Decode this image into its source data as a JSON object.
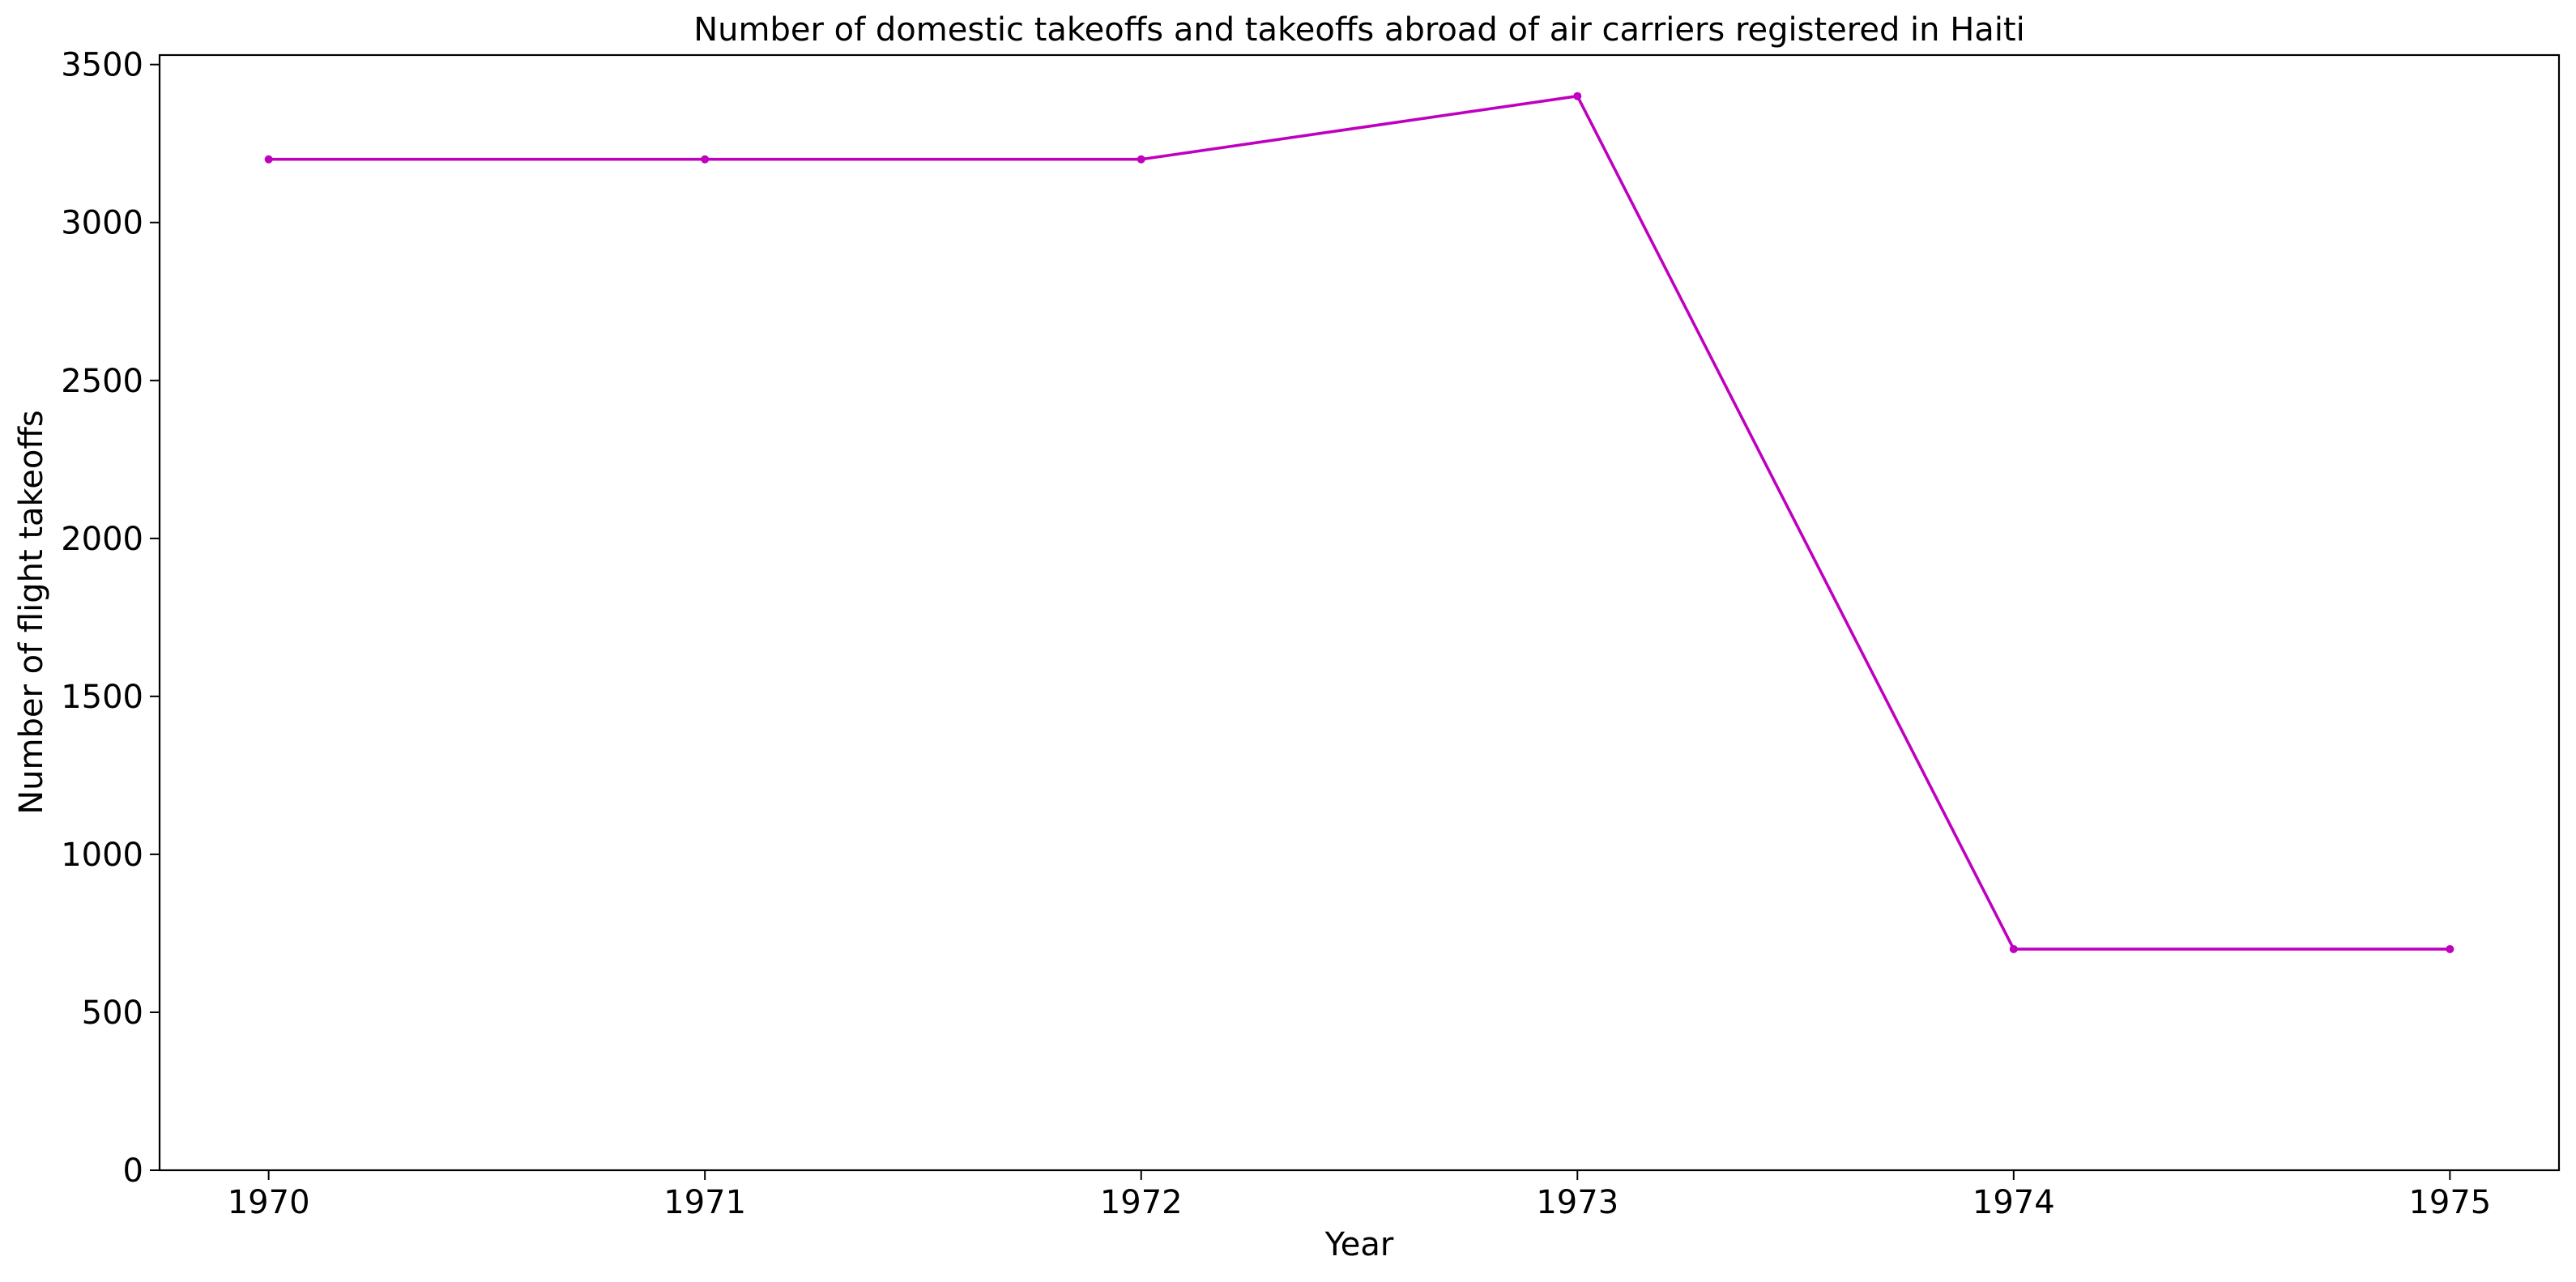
{
  "chart_data": {
    "type": "line",
    "title": "Number of domestic takeoffs and takeoffs abroad of air carriers registered in Haiti",
    "xlabel": "Year",
    "ylabel": "Number of flight takeoffs",
    "x": [
      1970,
      1971,
      1972,
      1973,
      1974,
      1975
    ],
    "x_tick_labels": [
      "1970",
      "1971",
      "1972",
      "1973",
      "1974",
      "1975"
    ],
    "y_ticks": [
      0,
      500,
      1000,
      1500,
      2000,
      2500,
      3000,
      3500
    ],
    "y_tick_labels": [
      "0",
      "500",
      "1000",
      "1500",
      "2000",
      "2500",
      "3000",
      "3500"
    ],
    "xlim": [
      1969.75,
      1975.25
    ],
    "ylim": [
      0,
      3530
    ],
    "grid": false,
    "series": [
      {
        "color": "#bf00bf",
        "marker": "circle",
        "values": [
          3200,
          3200,
          3200,
          3400,
          700,
          700
        ]
      }
    ]
  }
}
